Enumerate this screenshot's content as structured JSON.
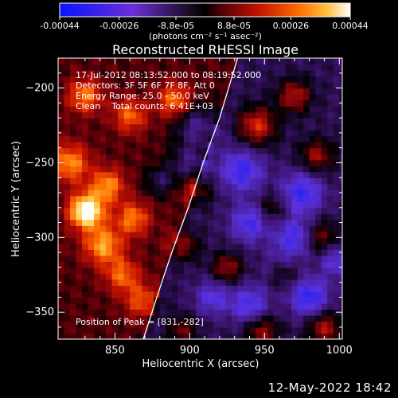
{
  "chart_data": {
    "type": "heatmap",
    "title": "Reconstructed RHESSI Image",
    "xlabel": "Heliocentric X (arcsec)",
    "ylabel": "Heliocentric Y (arcsec)",
    "xlim": [
      812,
      1002
    ],
    "ylim": [
      -368,
      -180
    ],
    "xticks": [
      850,
      900,
      950,
      1000
    ],
    "yticks": [
      -200,
      -250,
      -300,
      -350
    ],
    "colorbar": {
      "ticks": [
        "-0.00044",
        "-0.00026",
        "-8.8e-05",
        "8.8e-05",
        "0.00026",
        "0.00044"
      ],
      "tick_values": [
        -0.00044,
        -0.00026,
        -8.8e-05,
        8.8e-05,
        0.00026,
        0.00044
      ],
      "range": [
        -0.00044,
        0.00044
      ],
      "units": "(photons cm⁻² s⁻¹ asec⁻²)",
      "colormap": "blue-purple-black-red-orange-yellow-white"
    },
    "annotations": {
      "time_range": "17-Jul-2012 08:13:52.000 to 08:19:52.000",
      "detectors": "Detectors: 3F 5F 6F 7F 8F, Att 0",
      "energy_range": "Energy Range: 25.0 - 50.0 keV",
      "method_counts": "Clean    Total counts: 6.41E+03",
      "peak": "Position of Peak = [831,-282]"
    },
    "peak_position": [
      831,
      -282
    ],
    "limb_curve": [
      [
        869,
        -368
      ],
      [
        878,
        -340
      ],
      [
        888,
        -310
      ],
      [
        899,
        -280
      ],
      [
        909,
        -250
      ],
      [
        920,
        -220
      ],
      [
        929,
        -190
      ],
      [
        932,
        -180
      ]
    ],
    "blobs": [
      {
        "x": 831,
        "y": -282,
        "amp": 1.0,
        "r": 8
      },
      {
        "x": 820,
        "y": -250,
        "amp": 0.55,
        "r": 9
      },
      {
        "x": 842,
        "y": -305,
        "amp": 0.6,
        "r": 9
      },
      {
        "x": 845,
        "y": -265,
        "amp": 0.55,
        "r": 8
      },
      {
        "x": 862,
        "y": -287,
        "amp": 0.5,
        "r": 8
      },
      {
        "x": 855,
        "y": -325,
        "amp": 0.45,
        "r": 8
      },
      {
        "x": 868,
        "y": -342,
        "amp": 0.4,
        "r": 8
      },
      {
        "x": 830,
        "y": -205,
        "amp": 0.5,
        "r": 8
      },
      {
        "x": 860,
        "y": -218,
        "amp": 0.45,
        "r": 8
      },
      {
        "x": 890,
        "y": -208,
        "amp": 0.5,
        "r": 8
      },
      {
        "x": 905,
        "y": -268,
        "amp": 0.35,
        "r": 7
      },
      {
        "x": 896,
        "y": -305,
        "amp": 0.4,
        "r": 7
      },
      {
        "x": 925,
        "y": -320,
        "amp": 0.45,
        "r": 7
      },
      {
        "x": 945,
        "y": -225,
        "amp": 0.6,
        "r": 9
      },
      {
        "x": 970,
        "y": -205,
        "amp": 0.5,
        "r": 8
      },
      {
        "x": 985,
        "y": -245,
        "amp": 0.45,
        "r": 8
      },
      {
        "x": 955,
        "y": -280,
        "amp": 0.3,
        "r": 7
      },
      {
        "x": 962,
        "y": -323,
        "amp": 0.45,
        "r": 7
      },
      {
        "x": 988,
        "y": -300,
        "amp": 0.4,
        "r": 8
      },
      {
        "x": 948,
        "y": -362,
        "amp": 0.45,
        "r": 8
      },
      {
        "x": 990,
        "y": -360,
        "amp": 0.5,
        "r": 8
      },
      {
        "x": 895,
        "y": -362,
        "amp": 0.35,
        "r": 7
      },
      {
        "x": 905,
        "y": -225,
        "amp": -0.45,
        "r": 10
      },
      {
        "x": 900,
        "y": -250,
        "amp": -0.4,
        "r": 9
      },
      {
        "x": 935,
        "y": -255,
        "amp": -0.55,
        "r": 10
      },
      {
        "x": 940,
        "y": -290,
        "amp": -0.5,
        "r": 9
      },
      {
        "x": 975,
        "y": -270,
        "amp": -0.55,
        "r": 10
      },
      {
        "x": 970,
        "y": -300,
        "amp": -0.5,
        "r": 9
      },
      {
        "x": 980,
        "y": -340,
        "amp": -0.6,
        "r": 9
      },
      {
        "x": 940,
        "y": -345,
        "amp": -0.5,
        "r": 9
      },
      {
        "x": 915,
        "y": -340,
        "amp": -0.4,
        "r": 8
      },
      {
        "x": 960,
        "y": -320,
        "amp": -0.35,
        "r": 8
      },
      {
        "x": 880,
        "y": -262,
        "amp": -0.3,
        "r": 7
      },
      {
        "x": 998,
        "y": -315,
        "amp": -0.4,
        "r": 8
      }
    ]
  },
  "footer": {
    "timestamp": "12-May-2022 18:42"
  }
}
